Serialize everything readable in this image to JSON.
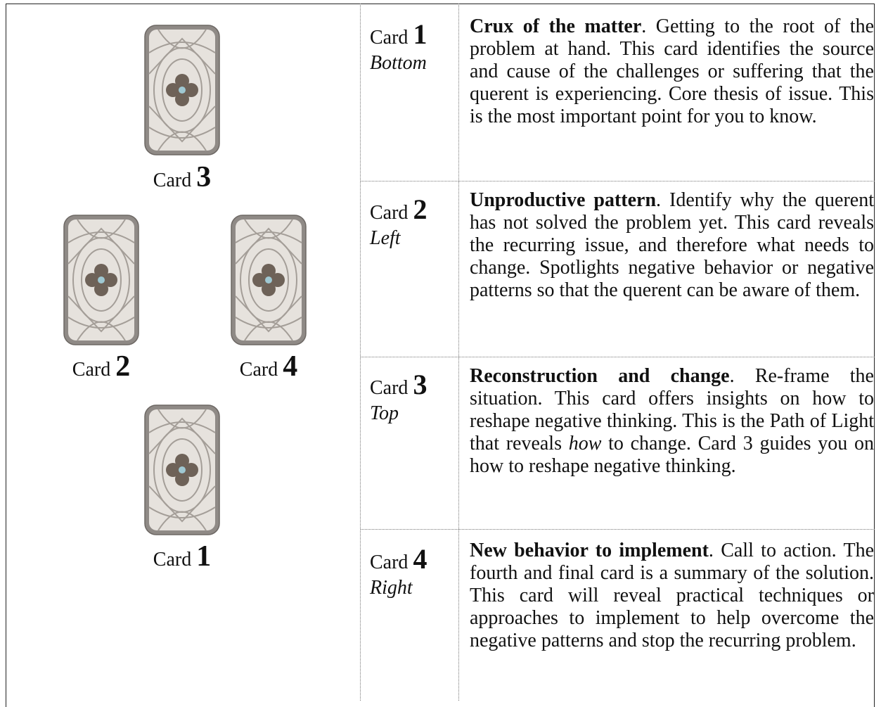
{
  "cards": [
    {
      "word": "Card",
      "number": "3"
    },
    {
      "word": "Card",
      "number": "2"
    },
    {
      "word": "Card",
      "number": "4"
    },
    {
      "word": "Card",
      "number": "1"
    }
  ],
  "rows": [
    {
      "word": "Card",
      "number": "1",
      "position": "Bottom",
      "title": "Crux of the matter",
      "desc": ". Getting to the root of the problem at hand. This card identifies the source and cause of the challenges or suffering that the querent is experiencing. Core thesis of issue. This is the most important point for you to know."
    },
    {
      "word": "Card",
      "number": "2",
      "position": "Left",
      "title": "Unproductive pattern",
      "desc": ". Identify why the querent has not solved the problem yet. This card reveals the recurring issue, and therefore what needs to change. Spotlights negative behavior or negative patterns so that the querent can be aware of them."
    },
    {
      "word": "Card",
      "number": "3",
      "position": "Top",
      "title": "Reconstruction and change",
      "desc": ". Re-frame the situation. This card offers insights on how to reshape negative thinking. This is the Path of Light that reveals ",
      "emphasis": "how",
      "desc_end": " to change. Card 3 guides you on how to reshape negative thinking."
    },
    {
      "word": "Card",
      "number": "4",
      "position": "Right",
      "title": "New behavior to implement",
      "desc": ". Call to action. The fourth and final card is a summary of the solution. This card will reveal practical techniques or approaches to implement to help overcome the negative patterns and stop the recurring problem."
    }
  ]
}
